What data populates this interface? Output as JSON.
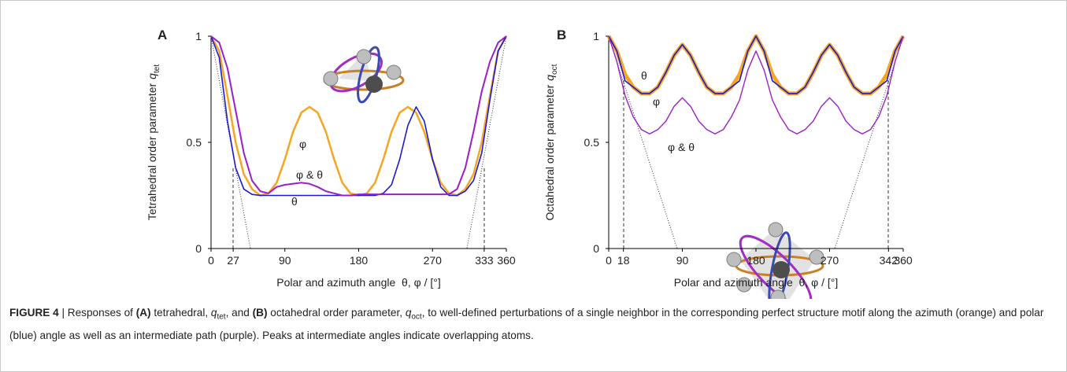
{
  "chart_data": [
    {
      "type": "line",
      "panel": "A",
      "xlabel": "Polar and azimuth angle  θ, φ / [°]",
      "ylabel": {
        "text": "Tetrahedral order parameter",
        "symbol": "q",
        "subscript": "tet"
      },
      "xlim": [
        0,
        360
      ],
      "ylim": [
        0,
        1
      ],
      "xticks": [
        0,
        27,
        90,
        180,
        270,
        333,
        360
      ],
      "yticks": [
        0,
        0.5,
        1
      ],
      "x": [
        0,
        10,
        20,
        30,
        40,
        50,
        60,
        70,
        80,
        90,
        100,
        110,
        120,
        130,
        140,
        150,
        160,
        170,
        180,
        190,
        200,
        210,
        220,
        230,
        240,
        250,
        260,
        270,
        280,
        290,
        300,
        310,
        320,
        330,
        340,
        350,
        360
      ],
      "series": [
        {
          "name": "φ",
          "color": "#f5a623",
          "linewidth": 2.5,
          "values": [
            1,
            0.93,
            0.72,
            0.5,
            0.35,
            0.28,
            0.25,
            0.26,
            0.31,
            0.42,
            0.55,
            0.64,
            0.667,
            0.64,
            0.55,
            0.42,
            0.31,
            0.26,
            0.25,
            0.26,
            0.31,
            0.42,
            0.55,
            0.64,
            0.667,
            0.64,
            0.55,
            0.42,
            0.31,
            0.26,
            0.25,
            0.28,
            0.35,
            0.5,
            0.72,
            0.93,
            1
          ]
        },
        {
          "name": "θ",
          "color": "#1a1ad6",
          "linewidth": 1.6,
          "values": [
            1,
            0.9,
            0.6,
            0.38,
            0.28,
            0.255,
            0.25,
            0.25,
            0.25,
            0.25,
            0.25,
            0.25,
            0.25,
            0.25,
            0.25,
            0.25,
            0.25,
            0.25,
            0.25,
            0.25,
            0.25,
            0.26,
            0.3,
            0.42,
            0.58,
            0.667,
            0.6,
            0.42,
            0.29,
            0.25,
            0.25,
            0.27,
            0.32,
            0.45,
            0.7,
            0.93,
            1
          ]
        },
        {
          "name": "φ & θ",
          "color": "#9b1fc6",
          "linewidth": 2,
          "values": [
            1,
            0.97,
            0.85,
            0.65,
            0.45,
            0.32,
            0.27,
            0.26,
            0.29,
            0.3,
            0.305,
            0.31,
            0.305,
            0.29,
            0.27,
            0.26,
            0.25,
            0.25,
            0.255,
            0.255,
            0.255,
            0.255,
            0.255,
            0.255,
            0.255,
            0.255,
            0.255,
            0.255,
            0.255,
            0.255,
            0.28,
            0.38,
            0.55,
            0.74,
            0.88,
            0.97,
            1
          ]
        }
      ],
      "annotations": [
        {
          "text": "φ",
          "color": "#c0641a"
        },
        {
          "text": "φ & θ",
          "color": "#9b1fc6"
        },
        {
          "text": "θ",
          "color": "#1a1ad6"
        }
      ]
    },
    {
      "type": "line",
      "panel": "B",
      "xlabel": "Polar and azimuth angle  θ, φ / [°]",
      "ylabel": {
        "text": "Octahedral order parameter",
        "symbol": "q",
        "subscript": "oct"
      },
      "xlim": [
        0,
        360
      ],
      "ylim": [
        0,
        1
      ],
      "xticks": [
        0,
        18,
        90,
        180,
        270,
        342,
        360
      ],
      "yticks": [
        0,
        0.5,
        1
      ],
      "x": [
        0,
        10,
        20,
        30,
        40,
        50,
        60,
        70,
        80,
        90,
        100,
        110,
        120,
        130,
        140,
        150,
        160,
        170,
        180,
        190,
        200,
        210,
        220,
        230,
        240,
        250,
        260,
        270,
        280,
        290,
        300,
        310,
        320,
        330,
        340,
        350,
        360
      ],
      "series": [
        {
          "name": "φ",
          "color": "#f5a623",
          "linewidth": 5,
          "values": [
            1,
            0.93,
            0.82,
            0.76,
            0.73,
            0.73,
            0.76,
            0.83,
            0.91,
            0.96,
            0.91,
            0.83,
            0.76,
            0.73,
            0.73,
            0.76,
            0.82,
            0.93,
            1,
            0.93,
            0.82,
            0.76,
            0.73,
            0.73,
            0.76,
            0.83,
            0.91,
            0.96,
            0.91,
            0.83,
            0.76,
            0.73,
            0.73,
            0.76,
            0.82,
            0.93,
            1
          ]
        },
        {
          "name": "θ",
          "color": "#1a1ad6",
          "linewidth": 1.6,
          "values": [
            1,
            0.93,
            0.79,
            0.76,
            0.73,
            0.73,
            0.76,
            0.83,
            0.91,
            0.96,
            0.91,
            0.83,
            0.76,
            0.73,
            0.73,
            0.76,
            0.79,
            0.93,
            1,
            0.93,
            0.79,
            0.76,
            0.73,
            0.73,
            0.76,
            0.83,
            0.91,
            0.96,
            0.91,
            0.83,
            0.76,
            0.73,
            0.73,
            0.76,
            0.79,
            0.93,
            1
          ]
        },
        {
          "name": "φ & θ",
          "color": "#9b1fc6",
          "linewidth": 1.4,
          "values": [
            1,
            0.88,
            0.72,
            0.62,
            0.56,
            0.54,
            0.56,
            0.6,
            0.67,
            0.71,
            0.67,
            0.6,
            0.56,
            0.54,
            0.56,
            0.62,
            0.7,
            0.84,
            0.93,
            0.84,
            0.7,
            0.62,
            0.56,
            0.54,
            0.56,
            0.6,
            0.67,
            0.71,
            0.67,
            0.6,
            0.56,
            0.54,
            0.56,
            0.62,
            0.72,
            0.88,
            1
          ]
        }
      ],
      "annotations": [
        {
          "text": "θ",
          "color": "#1a1ad6"
        },
        {
          "text": "φ",
          "color": "#c0641a"
        },
        {
          "text": "φ & θ",
          "color": "#9b1fc6"
        }
      ]
    }
  ],
  "caption": [
    "FIGURE 4",
    "| Responses of",
    "(A)",
    "tetrahedral,",
    "q",
    "tet",
    ", and",
    "(B)",
    "octahedral order parameter,",
    "q",
    "oct",
    ", to well-defined perturbations of a single neighbor in the corresponding perfect structure motif along the azimuth (orange) and polar (blue) angle as well as an intermediate path (purple). Peaks at intermediate angles indicate overlapping atoms."
  ]
}
